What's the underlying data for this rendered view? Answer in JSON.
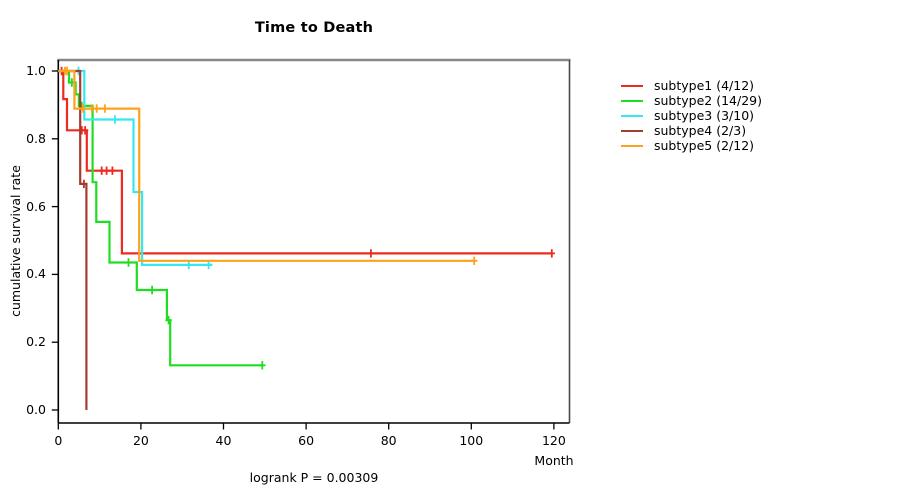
{
  "title": "Time to Death",
  "chart_data": {
    "type": "line",
    "subtype": "kaplan-meier-survival-steps",
    "title": "Time to Death",
    "xlabel": "Month",
    "ylabel": "cumulative survival rate",
    "annotation": "logrank P = 0.00309",
    "xlim": [
      0,
      124
    ],
    "ylim": [
      0.0,
      1.0
    ],
    "xticks": [
      "0",
      "20",
      "40",
      "60",
      "80",
      "100",
      "120"
    ],
    "yticks": [
      "0.0",
      "0.2",
      "0.4",
      "0.6",
      "0.8",
      "1.0"
    ],
    "grid": false,
    "legend_position": "right-outside",
    "series": [
      {
        "name": "subtype1 (4/12)",
        "color": "#ee2a1f",
        "steps": [
          [
            0,
            1.0
          ],
          [
            1.2,
            0.917
          ],
          [
            2.1,
            0.825
          ],
          [
            6.9,
            0.706
          ],
          [
            15.4,
            0.462
          ]
        ],
        "end": 119.5,
        "censors": [
          [
            0.8,
            1.0
          ],
          [
            5.7,
            0.825
          ],
          [
            6.5,
            0.825
          ],
          [
            10.5,
            0.706
          ],
          [
            11.7,
            0.706
          ],
          [
            13.1,
            0.706
          ],
          [
            75.7,
            0.462
          ],
          [
            119.5,
            0.462
          ]
        ]
      },
      {
        "name": "subtype2 (14/29)",
        "color": "#21dd21",
        "steps": [
          [
            0,
            1.0
          ],
          [
            2.6,
            0.966
          ],
          [
            4.2,
            0.931
          ],
          [
            5.0,
            0.897
          ],
          [
            8.3,
            0.672
          ],
          [
            9.2,
            0.555
          ],
          [
            12.4,
            0.435
          ],
          [
            19.0,
            0.354
          ],
          [
            26.3,
            0.265
          ],
          [
            27.1,
            0.132
          ]
        ],
        "end": 49.4,
        "censors": [
          [
            3.3,
            0.966
          ],
          [
            5.7,
            0.897
          ],
          [
            17.0,
            0.435
          ],
          [
            22.7,
            0.354
          ],
          [
            26.7,
            0.265
          ],
          [
            49.4,
            0.132
          ]
        ]
      },
      {
        "name": "subtype3 (3/10)",
        "color": "#35e7ee",
        "steps": [
          [
            0,
            1.0
          ],
          [
            6.3,
            0.857
          ],
          [
            18.2,
            0.643
          ],
          [
            20.3,
            0.428
          ]
        ],
        "end": 37.3,
        "censors": [
          [
            4.9,
            1.0
          ],
          [
            13.7,
            0.857
          ],
          [
            31.6,
            0.428
          ],
          [
            36.4,
            0.428
          ]
        ]
      },
      {
        "name": "subtype4 (2/3)",
        "color": "#a63b2f",
        "steps": [
          [
            0,
            1.0
          ],
          [
            5.3,
            0.667
          ],
          [
            6.8,
            0.0
          ]
        ],
        "end": 6.8,
        "censors": [
          [
            6.2,
            0.667
          ]
        ]
      },
      {
        "name": "subtype5 (2/12)",
        "color": "#ffa11c",
        "steps": [
          [
            0,
            1.0
          ],
          [
            3.9,
            0.889
          ],
          [
            19.6,
            0.44
          ]
        ],
        "end": 100.7,
        "censors": [
          [
            1.6,
            1.0
          ],
          [
            2.1,
            1.0
          ],
          [
            6.0,
            0.889
          ],
          [
            8.1,
            0.889
          ],
          [
            9.3,
            0.889
          ],
          [
            11.3,
            0.889
          ],
          [
            100.7,
            0.44
          ]
        ]
      }
    ]
  }
}
